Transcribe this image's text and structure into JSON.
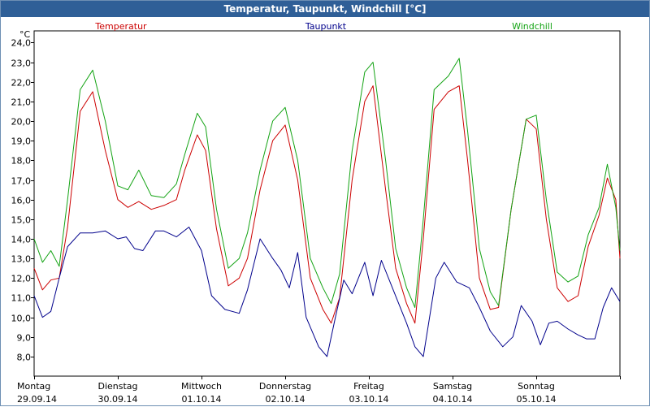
{
  "window": {
    "title": "Temperatur, Taupunkt, Windchill [°C]"
  },
  "colors": {
    "titlebar": "#2f5f97",
    "temperature": "#cc0000",
    "dewpoint": "#00008b",
    "windchill": "#13a313",
    "grid": "#000000",
    "plot_background": "#ffffff"
  },
  "chart_data": {
    "type": "line",
    "title": "Temperatur, Taupunkt, Windchill [°C]",
    "y_unit_label": "°C",
    "ylim": [
      7.0,
      24.6
    ],
    "yticks": [
      "24,0",
      "23,0",
      "22,0",
      "21,0",
      "20,0",
      "19,0",
      "18,0",
      "17,0",
      "16,0",
      "15,0",
      "14,0",
      "13,0",
      "12,0",
      "11,0",
      "10,0",
      "9,0",
      "8,0"
    ],
    "ytick_values": [
      24,
      23,
      22,
      21,
      20,
      19,
      18,
      17,
      16,
      15,
      14,
      13,
      12,
      11,
      10,
      9,
      8
    ],
    "x_labels": [
      {
        "day": "Montag",
        "date": "29.09.14"
      },
      {
        "day": "Dienstag",
        "date": "30.09.14"
      },
      {
        "day": "Mittwoch",
        "date": "01.10.14"
      },
      {
        "day": "Donnerstag",
        "date": "02.10.14"
      },
      {
        "day": "Freitag",
        "date": "03.10.14"
      },
      {
        "day": "Samstag",
        "date": "04.10.14"
      },
      {
        "day": "Sonntag",
        "date": "05.10.14"
      }
    ],
    "x_unit": "days",
    "xlim": [
      0,
      7
    ],
    "legend": {
      "placement": "top",
      "entries": [
        "Temperatur",
        "Taupunkt",
        "Windchill"
      ]
    },
    "grid": true,
    "series": [
      {
        "name": "Temperatur",
        "points": [
          [
            0.0,
            12.5
          ],
          [
            0.1,
            11.4
          ],
          [
            0.2,
            11.9
          ],
          [
            0.3,
            12.0
          ],
          [
            0.4,
            14.6
          ],
          [
            0.55,
            20.5
          ],
          [
            0.7,
            21.5
          ],
          [
            0.85,
            18.5
          ],
          [
            1.0,
            16.0
          ],
          [
            1.12,
            15.6
          ],
          [
            1.25,
            15.9
          ],
          [
            1.4,
            15.5
          ],
          [
            1.55,
            15.7
          ],
          [
            1.7,
            16.0
          ],
          [
            1.8,
            17.5
          ],
          [
            1.95,
            19.3
          ],
          [
            2.05,
            18.5
          ],
          [
            2.18,
            14.5
          ],
          [
            2.32,
            11.6
          ],
          [
            2.45,
            12.0
          ],
          [
            2.55,
            13.0
          ],
          [
            2.7,
            16.5
          ],
          [
            2.85,
            19.0
          ],
          [
            3.0,
            19.8
          ],
          [
            3.15,
            17.0
          ],
          [
            3.3,
            12.0
          ],
          [
            3.45,
            10.4
          ],
          [
            3.55,
            9.7
          ],
          [
            3.65,
            11.0
          ],
          [
            3.8,
            17.0
          ],
          [
            3.95,
            21.0
          ],
          [
            4.05,
            21.8
          ],
          [
            4.2,
            16.5
          ],
          [
            4.32,
            12.5
          ],
          [
            4.45,
            10.7
          ],
          [
            4.55,
            9.7
          ],
          [
            4.65,
            14.0
          ],
          [
            4.78,
            20.6
          ],
          [
            4.95,
            21.5
          ],
          [
            5.08,
            21.8
          ],
          [
            5.18,
            18.0
          ],
          [
            5.32,
            12.0
          ],
          [
            5.45,
            10.4
          ],
          [
            5.55,
            10.5
          ],
          [
            5.7,
            15.5
          ],
          [
            5.88,
            20.1
          ],
          [
            6.0,
            19.6
          ],
          [
            6.12,
            15.0
          ],
          [
            6.25,
            11.5
          ],
          [
            6.38,
            10.8
          ],
          [
            6.5,
            11.1
          ],
          [
            6.62,
            13.6
          ],
          [
            6.75,
            15.2
          ],
          [
            6.85,
            17.1
          ],
          [
            6.95,
            16.0
          ],
          [
            7.0,
            13.0
          ]
        ]
      },
      {
        "name": "Taupunkt",
        "points": [
          [
            0.0,
            11.1
          ],
          [
            0.1,
            10.0
          ],
          [
            0.2,
            10.3
          ],
          [
            0.3,
            12.0
          ],
          [
            0.4,
            13.6
          ],
          [
            0.55,
            14.3
          ],
          [
            0.7,
            14.3
          ],
          [
            0.85,
            14.4
          ],
          [
            1.0,
            14.0
          ],
          [
            1.1,
            14.1
          ],
          [
            1.2,
            13.5
          ],
          [
            1.3,
            13.4
          ],
          [
            1.45,
            14.4
          ],
          [
            1.55,
            14.4
          ],
          [
            1.7,
            14.1
          ],
          [
            1.85,
            14.6
          ],
          [
            2.0,
            13.4
          ],
          [
            2.12,
            11.1
          ],
          [
            2.28,
            10.4
          ],
          [
            2.45,
            10.2
          ],
          [
            2.55,
            11.4
          ],
          [
            2.7,
            14.0
          ],
          [
            2.85,
            13.0
          ],
          [
            2.95,
            12.4
          ],
          [
            3.05,
            11.5
          ],
          [
            3.15,
            13.3
          ],
          [
            3.25,
            10.0
          ],
          [
            3.4,
            8.5
          ],
          [
            3.5,
            8.0
          ],
          [
            3.6,
            10.0
          ],
          [
            3.7,
            11.9
          ],
          [
            3.8,
            11.2
          ],
          [
            3.95,
            12.8
          ],
          [
            4.05,
            11.1
          ],
          [
            4.15,
            12.9
          ],
          [
            4.3,
            11.3
          ],
          [
            4.45,
            9.7
          ],
          [
            4.55,
            8.5
          ],
          [
            4.65,
            8.0
          ],
          [
            4.8,
            12.0
          ],
          [
            4.9,
            12.8
          ],
          [
            5.05,
            11.8
          ],
          [
            5.2,
            11.5
          ],
          [
            5.32,
            10.5
          ],
          [
            5.45,
            9.3
          ],
          [
            5.6,
            8.5
          ],
          [
            5.72,
            9.0
          ],
          [
            5.82,
            10.6
          ],
          [
            5.95,
            9.8
          ],
          [
            6.05,
            8.6
          ],
          [
            6.15,
            9.7
          ],
          [
            6.25,
            9.8
          ],
          [
            6.38,
            9.4
          ],
          [
            6.5,
            9.1
          ],
          [
            6.6,
            8.9
          ],
          [
            6.7,
            8.9
          ],
          [
            6.8,
            10.5
          ],
          [
            6.9,
            11.5
          ],
          [
            7.0,
            10.8
          ]
        ]
      },
      {
        "name": "Windchill",
        "points": [
          [
            0.0,
            14.0
          ],
          [
            0.1,
            12.8
          ],
          [
            0.2,
            13.4
          ],
          [
            0.3,
            12.6
          ],
          [
            0.4,
            16.0
          ],
          [
            0.55,
            21.6
          ],
          [
            0.7,
            22.6
          ],
          [
            0.85,
            20.0
          ],
          [
            1.0,
            16.7
          ],
          [
            1.12,
            16.5
          ],
          [
            1.25,
            17.5
          ],
          [
            1.4,
            16.2
          ],
          [
            1.55,
            16.1
          ],
          [
            1.7,
            16.8
          ],
          [
            1.8,
            18.3
          ],
          [
            1.95,
            20.4
          ],
          [
            2.05,
            19.7
          ],
          [
            2.18,
            15.5
          ],
          [
            2.32,
            12.5
          ],
          [
            2.45,
            13.0
          ],
          [
            2.55,
            14.3
          ],
          [
            2.7,
            17.5
          ],
          [
            2.85,
            20.0
          ],
          [
            3.0,
            20.7
          ],
          [
            3.15,
            18.0
          ],
          [
            3.3,
            13.0
          ],
          [
            3.45,
            11.5
          ],
          [
            3.55,
            10.7
          ],
          [
            3.65,
            12.2
          ],
          [
            3.8,
            18.5
          ],
          [
            3.95,
            22.5
          ],
          [
            4.05,
            23.0
          ],
          [
            4.2,
            18.0
          ],
          [
            4.32,
            13.5
          ],
          [
            4.45,
            11.5
          ],
          [
            4.55,
            10.5
          ],
          [
            4.65,
            15.0
          ],
          [
            4.78,
            21.6
          ],
          [
            4.95,
            22.3
          ],
          [
            5.08,
            23.2
          ],
          [
            5.18,
            19.5
          ],
          [
            5.32,
            13.5
          ],
          [
            5.45,
            11.3
          ],
          [
            5.55,
            10.6
          ],
          [
            5.7,
            15.5
          ],
          [
            5.88,
            20.1
          ],
          [
            6.0,
            20.3
          ],
          [
            6.12,
            16.0
          ],
          [
            6.25,
            12.3
          ],
          [
            6.38,
            11.8
          ],
          [
            6.5,
            12.1
          ],
          [
            6.62,
            14.2
          ],
          [
            6.75,
            15.6
          ],
          [
            6.85,
            17.8
          ],
          [
            6.95,
            15.6
          ],
          [
            7.0,
            13.4
          ]
        ]
      }
    ]
  }
}
